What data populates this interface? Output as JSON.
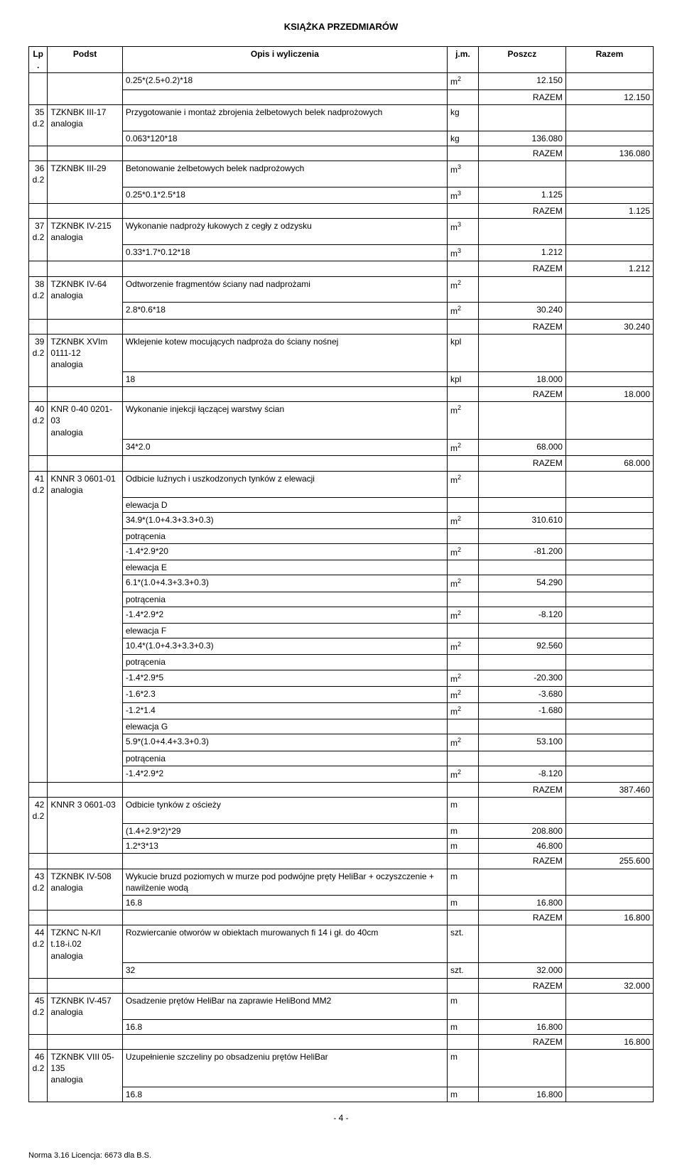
{
  "title": "KSIĄŻKA PRZEDMIARÓW",
  "columns": [
    "Lp.",
    "Podst",
    "Opis i wyliczenia",
    "j.m.",
    "Poszcz",
    "Razem"
  ],
  "page_number": "- 4 -",
  "footer": "Norma 3.16 Licencja: 6673 dla B.S.",
  "rows": [
    {
      "lp": "",
      "lpOpen": "top",
      "podst": "",
      "opis": "0.25*(2.5+0.2)*18",
      "jm": "m2",
      "poszcz": "12.150",
      "razem": ""
    },
    {
      "lp": "",
      "lpOpen": "mid",
      "podst": "",
      "opis": "",
      "jm": "",
      "poszcz": "RAZEM",
      "razem": "12.150"
    },
    {
      "lp": "35\nd.2",
      "podst": "TZKNBK III-17\nanalogia",
      "opis": "Przygotowanie i montaż zbrojenia żelbetowych belek nadprożowych",
      "jm": "kg",
      "poszcz": "",
      "razem": "",
      "openBelow": true
    },
    {
      "lp": "",
      "lpOpen": "bot",
      "podst": "",
      "opis": "0.063*120*18",
      "jm": "kg",
      "poszcz": "136.080",
      "razem": ""
    },
    {
      "lp": "",
      "lpOpen": "mid",
      "podst": "",
      "opis": "",
      "jm": "",
      "poszcz": "RAZEM",
      "razem": "136.080"
    },
    {
      "lp": "36\nd.2",
      "podst": "TZKNBK III-29",
      "opis": "Betonowanie żelbetowych belek nadprożowych",
      "jm": "m3",
      "poszcz": "",
      "razem": "",
      "openBelow": true
    },
    {
      "lp": "",
      "lpOpen": "bot",
      "podst": "",
      "opis": "0.25*0.1*2.5*18",
      "jm": "m3",
      "poszcz": "1.125",
      "razem": ""
    },
    {
      "lp": "",
      "lpOpen": "mid",
      "podst": "",
      "opis": "",
      "jm": "",
      "poszcz": "RAZEM",
      "razem": "1.125"
    },
    {
      "lp": "37\nd.2",
      "podst": "TZKNBK IV-215\nanalogia",
      "opis": "Wykonanie nadproży łukowych z cegły z odzysku",
      "jm": "m3",
      "poszcz": "",
      "razem": "",
      "openBelow": true
    },
    {
      "lp": "",
      "lpOpen": "bot",
      "podst": "",
      "opis": "0.33*1.7*0.12*18",
      "jm": "m3",
      "poszcz": "1.212",
      "razem": ""
    },
    {
      "lp": "",
      "lpOpen": "mid",
      "podst": "",
      "opis": "",
      "jm": "",
      "poszcz": "RAZEM",
      "razem": "1.212"
    },
    {
      "lp": "38\nd.2",
      "podst": "TZKNBK IV-64\nanalogia",
      "opis": "Odtworzenie fragmentów ściany nad nadprożami",
      "jm": "m2",
      "poszcz": "",
      "razem": "",
      "openBelow": true
    },
    {
      "lp": "",
      "lpOpen": "bot",
      "podst": "",
      "opis": "2.8*0.6*18",
      "jm": "m2",
      "poszcz": "30.240",
      "razem": ""
    },
    {
      "lp": "",
      "lpOpen": "mid",
      "podst": "",
      "opis": "",
      "jm": "",
      "poszcz": "RAZEM",
      "razem": "30.240"
    },
    {
      "lp": "39\nd.2",
      "podst": "TZKNBK XVIm 0111-12\nanalogia",
      "opis": "Wklejenie kotew mocujących nadproża do ściany nośnej",
      "jm": "kpl",
      "poszcz": "",
      "razem": "",
      "openBelow": true
    },
    {
      "lp": "",
      "lpOpen": "bot",
      "podst": "",
      "opis": "18",
      "jm": "kpl",
      "poszcz": "18.000",
      "razem": ""
    },
    {
      "lp": "",
      "lpOpen": "mid",
      "podst": "",
      "opis": "",
      "jm": "",
      "poszcz": "RAZEM",
      "razem": "18.000"
    },
    {
      "lp": "40\nd.2",
      "podst": "KNR 0-40 0201-03\nanalogia",
      "opis": "Wykonanie injekcji łączącej warstwy ścian",
      "jm": "m2",
      "poszcz": "",
      "razem": "",
      "openBelow": true
    },
    {
      "lp": "",
      "lpOpen": "bot",
      "podst": "",
      "opis": "34*2.0",
      "jm": "m2",
      "poszcz": "68.000",
      "razem": ""
    },
    {
      "lp": "",
      "lpOpen": "mid",
      "podst": "",
      "opis": "",
      "jm": "",
      "poszcz": "RAZEM",
      "razem": "68.000"
    },
    {
      "lp": "41\nd.2",
      "podst": "KNNR 3 0601-01\nanalogia",
      "opis": "Odbicie luźnych i uszkodzonych tynków z elewacji",
      "jm": "m2",
      "poszcz": "",
      "razem": "",
      "openBelow": true
    },
    {
      "lp": "",
      "lpOpen": "mid",
      "podst": "",
      "opis": "elewacja D",
      "jm": "",
      "poszcz": "",
      "razem": ""
    },
    {
      "lp": "",
      "lpOpen": "mid",
      "podst": "",
      "opis": "34.9*(1.0+4.3+3.3+0.3)",
      "jm": "m2",
      "poszcz": "310.610",
      "razem": ""
    },
    {
      "lp": "",
      "lpOpen": "mid",
      "podst": "",
      "opis": "potrącenia",
      "jm": "",
      "poszcz": "",
      "razem": ""
    },
    {
      "lp": "",
      "lpOpen": "mid",
      "podst": "",
      "opis": "-1.4*2.9*20",
      "jm": "m2",
      "poszcz": "-81.200",
      "razem": ""
    },
    {
      "lp": "",
      "lpOpen": "mid",
      "podst": "",
      "opis": "elewacja E",
      "jm": "",
      "poszcz": "",
      "razem": ""
    },
    {
      "lp": "",
      "lpOpen": "mid",
      "podst": "",
      "opis": "6.1*(1.0+4.3+3.3+0.3)",
      "jm": "m2",
      "poszcz": "54.290",
      "razem": ""
    },
    {
      "lp": "",
      "lpOpen": "mid",
      "podst": "",
      "opis": "potrącenia",
      "jm": "",
      "poszcz": "",
      "razem": ""
    },
    {
      "lp": "",
      "lpOpen": "mid",
      "podst": "",
      "opis": "-1.4*2.9*2",
      "jm": "m2",
      "poszcz": "-8.120",
      "razem": ""
    },
    {
      "lp": "",
      "lpOpen": "mid",
      "podst": "",
      "opis": "elewacja F",
      "jm": "",
      "poszcz": "",
      "razem": ""
    },
    {
      "lp": "",
      "lpOpen": "mid",
      "podst": "",
      "opis": "10.4*(1.0+4.3+3.3+0.3)",
      "jm": "m2",
      "poszcz": "92.560",
      "razem": ""
    },
    {
      "lp": "",
      "lpOpen": "mid",
      "podst": "",
      "opis": "potrącenia",
      "jm": "",
      "poszcz": "",
      "razem": ""
    },
    {
      "lp": "",
      "lpOpen": "mid",
      "podst": "",
      "opis": "-1.4*2.9*5",
      "jm": "m2",
      "poszcz": "-20.300",
      "razem": ""
    },
    {
      "lp": "",
      "lpOpen": "mid",
      "podst": "",
      "opis": "-1.6*2.3",
      "jm": "m2",
      "poszcz": "-3.680",
      "razem": ""
    },
    {
      "lp": "",
      "lpOpen": "mid",
      "podst": "",
      "opis": "-1.2*1.4",
      "jm": "m2",
      "poszcz": "-1.680",
      "razem": ""
    },
    {
      "lp": "",
      "lpOpen": "mid",
      "podst": "",
      "opis": "elewacja G",
      "jm": "",
      "poszcz": "",
      "razem": ""
    },
    {
      "lp": "",
      "lpOpen": "mid",
      "podst": "",
      "opis": "5.9*(1.0+4.4+3.3+0.3)",
      "jm": "m2",
      "poszcz": "53.100",
      "razem": ""
    },
    {
      "lp": "",
      "lpOpen": "mid",
      "podst": "",
      "opis": "potrącenia",
      "jm": "",
      "poszcz": "",
      "razem": ""
    },
    {
      "lp": "",
      "lpOpen": "bot",
      "podst": "",
      "opis": "-1.4*2.9*2",
      "jm": "m2",
      "poszcz": "-8.120",
      "razem": ""
    },
    {
      "lp": "",
      "lpOpen": "mid",
      "podst": "",
      "opis": "",
      "jm": "",
      "poszcz": "RAZEM",
      "razem": "387.460"
    },
    {
      "lp": "42\nd.2",
      "podst": "KNNR 3 0601-03",
      "opis": "Odbicie tynków z ościeży",
      "jm": "m",
      "poszcz": "",
      "razem": "",
      "openBelow": true
    },
    {
      "lp": "",
      "lpOpen": "mid",
      "podst": "",
      "opis": "(1.4+2.9*2)*29",
      "jm": "m",
      "poszcz": "208.800",
      "razem": ""
    },
    {
      "lp": "",
      "lpOpen": "bot",
      "podst": "",
      "opis": "1.2*3*13",
      "jm": "m",
      "poszcz": "46.800",
      "razem": ""
    },
    {
      "lp": "",
      "lpOpen": "mid",
      "podst": "",
      "opis": "",
      "jm": "",
      "poszcz": "RAZEM",
      "razem": "255.600"
    },
    {
      "lp": "43\nd.2",
      "podst": "TZKNBK IV-508\nanalogia",
      "opis": "Wykucie bruzd poziomych w murze pod podwójne pręty HeliBar + oczyszczenie + nawilżenie wodą",
      "jm": "m",
      "poszcz": "",
      "razem": "",
      "openBelow": true
    },
    {
      "lp": "",
      "lpOpen": "bot",
      "podst": "",
      "opis": "16.8",
      "jm": "m",
      "poszcz": "16.800",
      "razem": ""
    },
    {
      "lp": "",
      "lpOpen": "mid",
      "podst": "",
      "opis": "",
      "jm": "",
      "poszcz": "RAZEM",
      "razem": "16.800"
    },
    {
      "lp": "44\nd.2",
      "podst": "TZKNC N-K/I t.18-i.02\nanalogia",
      "opis": "Rozwiercanie otworów w obiektach murowanych fi 14 i gł. do 40cm",
      "jm": "szt.",
      "poszcz": "",
      "razem": "",
      "openBelow": true
    },
    {
      "lp": "",
      "lpOpen": "bot",
      "podst": "",
      "opis": "32",
      "jm": "szt.",
      "poszcz": "32.000",
      "razem": ""
    },
    {
      "lp": "",
      "lpOpen": "mid",
      "podst": "",
      "opis": "",
      "jm": "",
      "poszcz": "RAZEM",
      "razem": "32.000"
    },
    {
      "lp": "45\nd.2",
      "podst": "TZKNBK IV-457\nanalogia",
      "opis": "Osadzenie prętów HeliBar na zaprawie HeliBond MM2",
      "jm": "m",
      "poszcz": "",
      "razem": "",
      "openBelow": true
    },
    {
      "lp": "",
      "lpOpen": "bot",
      "podst": "",
      "opis": "16.8",
      "jm": "m",
      "poszcz": "16.800",
      "razem": ""
    },
    {
      "lp": "",
      "lpOpen": "mid",
      "podst": "",
      "opis": "",
      "jm": "",
      "poszcz": "RAZEM",
      "razem": "16.800"
    },
    {
      "lp": "46\nd.2",
      "podst": "TZKNBK VIII 05-135\nanalogia",
      "opis": "Uzupełnienie szczeliny po obsadzeniu prętów HeliBar",
      "jm": "m",
      "poszcz": "",
      "razem": "",
      "openBelow": true
    },
    {
      "lp": "",
      "lpOpen": "bot",
      "podst": "",
      "opis": "16.8",
      "jm": "m",
      "poszcz": "16.800",
      "razem": ""
    }
  ]
}
